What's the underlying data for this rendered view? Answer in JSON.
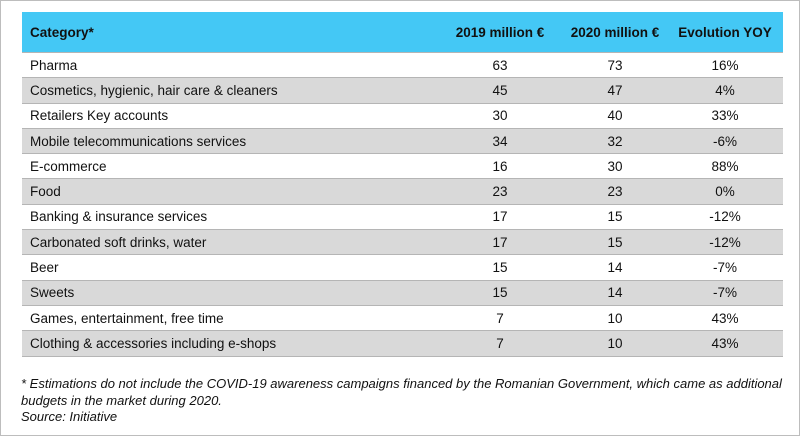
{
  "chart_data": {
    "type": "table",
    "columns": [
      "Category*",
      "2019 million €",
      "2020 million €",
      "Evolution YOY"
    ],
    "rows": [
      [
        "Pharma",
        63,
        73,
        "16%"
      ],
      [
        "Cosmetics, hygienic, hair care &  cleaners",
        45,
        47,
        "4%"
      ],
      [
        "Retailers Key accounts",
        30,
        40,
        "33%"
      ],
      [
        "Mobile telecommunications services",
        34,
        32,
        "-6%"
      ],
      [
        "E-commerce",
        16,
        30,
        "88%"
      ],
      [
        "Food",
        23,
        23,
        "0%"
      ],
      [
        "Banking & insurance services",
        17,
        15,
        "-12%"
      ],
      [
        "Carbonated soft drinks, water",
        17,
        15,
        "-12%"
      ],
      [
        "Beer",
        15,
        14,
        "-7%"
      ],
      [
        "Sweets",
        15,
        14,
        "-7%"
      ],
      [
        "Games, entertainment, free time",
        7,
        10,
        "43%"
      ],
      [
        "Clothing & accessories including e-shops",
        7,
        10,
        "43%"
      ]
    ]
  },
  "footnote": {
    "note": "* Estimations do not include the COVID-19 awareness campaigns financed by the Romanian Government, which came as additional budgets in the market during 2020.",
    "source": "Source: Initiative"
  },
  "colors": {
    "header_bg": "#44c8f5",
    "stripe_bg": "#d9d9d9",
    "row_bg": "#ffffff"
  }
}
